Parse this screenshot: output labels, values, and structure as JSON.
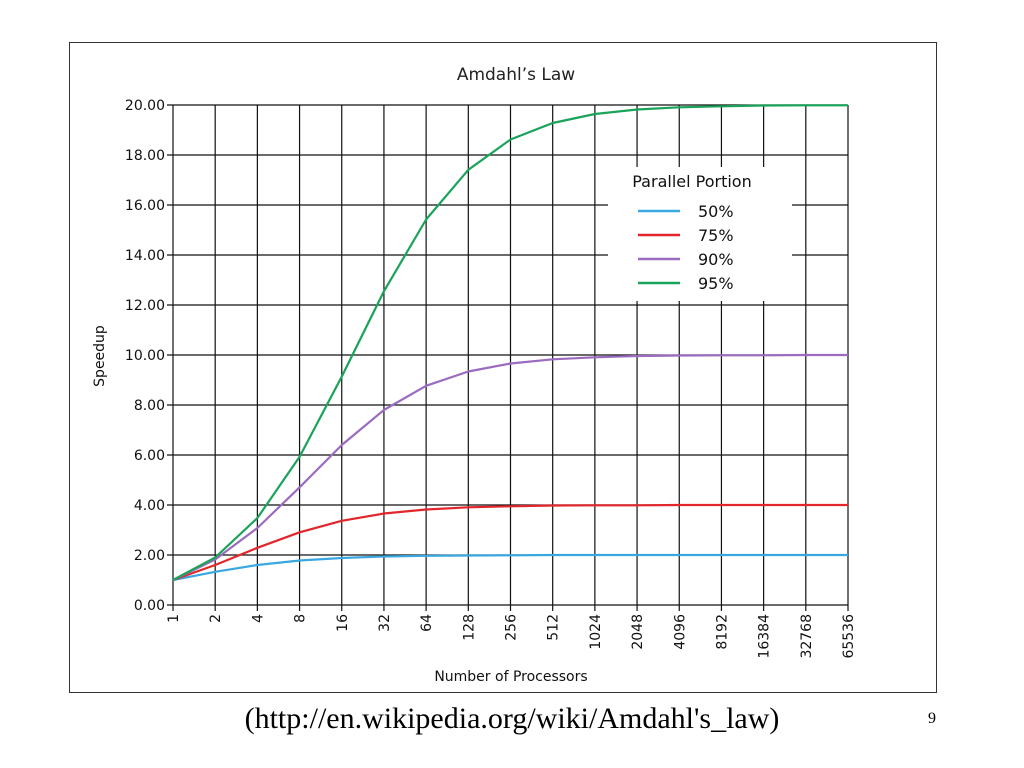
{
  "chart_data": {
    "type": "line",
    "title": "Amdahl’s Law",
    "xlabel": "Number of Processors",
    "ylabel": "Speedup",
    "x_scale": "log2",
    "categories": [
      "1",
      "2",
      "4",
      "8",
      "16",
      "32",
      "64",
      "128",
      "256",
      "512",
      "1024",
      "2048",
      "4096",
      "8192",
      "16384",
      "32768",
      "65536"
    ],
    "y_ticks": [
      "0.00",
      "2.00",
      "4.00",
      "6.00",
      "8.00",
      "10.00",
      "12.00",
      "14.00",
      "16.00",
      "18.00",
      "20.00"
    ],
    "ylim": [
      0,
      20
    ],
    "grid": true,
    "legend_title": "Parallel Portion",
    "legend_position": "upper-right",
    "series": [
      {
        "name": "50%",
        "color": "#3aa8e0",
        "values": [
          1.0,
          1.33,
          1.6,
          1.78,
          1.88,
          1.94,
          1.97,
          1.98,
          1.99,
          2.0,
          2.0,
          2.0,
          2.0,
          2.0,
          2.0,
          2.0,
          2.0
        ]
      },
      {
        "name": "75%",
        "color": "#e3262b",
        "values": [
          1.0,
          1.6,
          2.29,
          2.91,
          3.37,
          3.66,
          3.82,
          3.91,
          3.95,
          3.98,
          3.99,
          3.99,
          4.0,
          4.0,
          4.0,
          4.0,
          4.0
        ]
      },
      {
        "name": "90%",
        "color": "#9b6bbf",
        "values": [
          1.0,
          1.82,
          3.08,
          4.71,
          6.4,
          7.8,
          8.77,
          9.34,
          9.66,
          9.83,
          9.91,
          9.96,
          9.98,
          9.99,
          9.99,
          10.0,
          10.0
        ]
      },
      {
        "name": "95%",
        "color": "#1aa35a",
        "values": [
          1.0,
          1.9,
          3.48,
          5.93,
          9.14,
          12.55,
          15.42,
          17.41,
          18.62,
          19.28,
          19.64,
          19.82,
          19.91,
          19.95,
          19.98,
          19.99,
          19.99
        ]
      }
    ]
  },
  "caption": "(http://en.wikipedia.org/wiki/Amdahl's_law)",
  "page_number": "9"
}
